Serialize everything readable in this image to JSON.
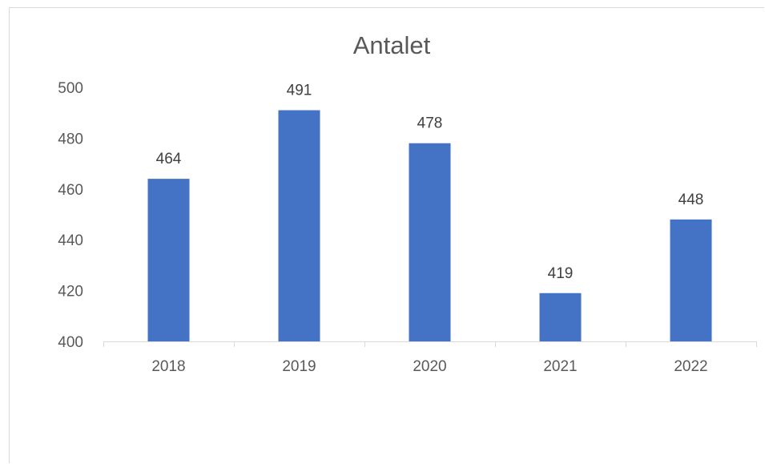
{
  "chart_data": {
    "type": "bar",
    "title": "Antalet",
    "categories": [
      "2018",
      "2019",
      "2020",
      "2021",
      "2022"
    ],
    "values": [
      464,
      491,
      478,
      419,
      448
    ],
    "ylim": [
      400,
      500
    ],
    "yticks": [
      400,
      420,
      440,
      460,
      480,
      500
    ],
    "xlabel": "",
    "ylabel": "",
    "grid": false,
    "data_labels": true,
    "colors": {
      "bar": "#4472C4",
      "axis": "#d9d9d9"
    }
  }
}
